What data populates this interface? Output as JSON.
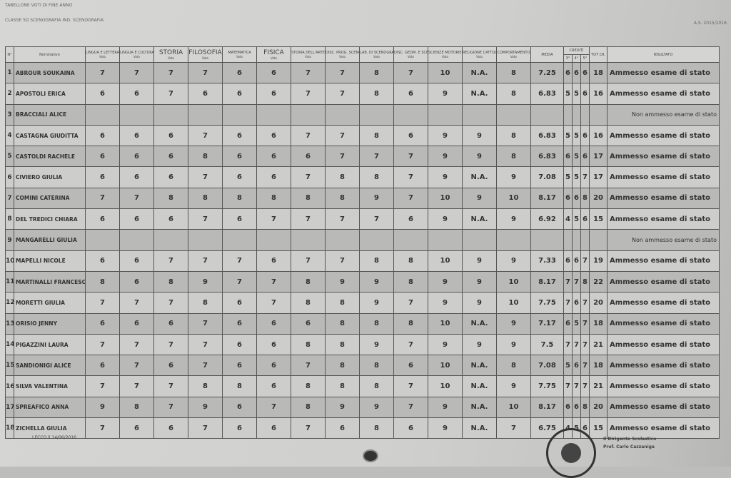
{
  "header": {
    "title": "TABELLONE VOTI DI FINE ANNO",
    "class": "CLASSE 5D SCENOGRAFIA IND. SCENOGRAFIA",
    "year": "A.S. 2015/2016"
  },
  "columns": {
    "n": "N°",
    "name": "Nominativo",
    "subjects": [
      "LINGUA E LETTERATURA ITALIANA",
      "LINGUA E CULTURA STRANIERA",
      "STORIA",
      "FILOSOFIA",
      "MATEMATICA",
      "FISICA",
      "STORIA DELL'ARTE",
      "DISC. PROG. SCENOGRAFICHE",
      "LAB. DI SCENOGRAFIA",
      "DISC. GEOM. E SCENOTECNICHE",
      "SCIENZE MOTORIE E SPORTIVE",
      "RELIGIONE CATTOLICA",
      "COMPORTAMENTO"
    ],
    "voto": "Voto",
    "media": "MEDIA",
    "crediti": "CREDITI",
    "crediti_years": [
      "3°",
      "4°",
      "5°"
    ],
    "tot": "TOT CR.",
    "risultato": "RISULTATO"
  },
  "rows": [
    {
      "n": "1",
      "name": "ABROUR SOUKAINA",
      "grades": [
        "7",
        "7",
        "7",
        "7",
        "6",
        "6",
        "7",
        "7",
        "8",
        "7",
        "10",
        "N.A.",
        "8"
      ],
      "media": "7.25",
      "crediti": [
        "6",
        "6",
        "6"
      ],
      "tot": "18",
      "result": "Ammesso esame di stato"
    },
    {
      "n": "2",
      "name": "APOSTOLI ERICA",
      "grades": [
        "6",
        "6",
        "7",
        "6",
        "6",
        "6",
        "7",
        "7",
        "8",
        "6",
        "9",
        "N.A.",
        "8"
      ],
      "media": "6.83",
      "crediti": [
        "5",
        "5",
        "6"
      ],
      "tot": "16",
      "result": "Ammesso esame di stato"
    },
    {
      "n": "3",
      "name": "BRACCIALI ALICE",
      "grades": [
        "",
        "",
        "",
        "",
        "",
        "",
        "",
        "",
        "",
        "",
        "",
        "",
        ""
      ],
      "media": "",
      "crediti": [
        "",
        "",
        ""
      ],
      "tot": "",
      "result": "Non ammesso esame di stato"
    },
    {
      "n": "4",
      "name": "CASTAGNA GIUDITTA",
      "grades": [
        "6",
        "6",
        "6",
        "7",
        "6",
        "6",
        "7",
        "7",
        "8",
        "6",
        "9",
        "9",
        "8"
      ],
      "media": "6.83",
      "crediti": [
        "5",
        "5",
        "6"
      ],
      "tot": "16",
      "result": "Ammesso esame di stato"
    },
    {
      "n": "5",
      "name": "CASTOLDI RACHELE",
      "grades": [
        "6",
        "6",
        "6",
        "8",
        "6",
        "6",
        "6",
        "7",
        "7",
        "7",
        "9",
        "9",
        "8"
      ],
      "media": "6.83",
      "crediti": [
        "6",
        "5",
        "6"
      ],
      "tot": "17",
      "result": "Ammesso esame di stato"
    },
    {
      "n": "6",
      "name": "CIVIERO GIULIA",
      "grades": [
        "6",
        "6",
        "6",
        "7",
        "6",
        "6",
        "7",
        "8",
        "8",
        "7",
        "9",
        "N.A.",
        "9"
      ],
      "media": "7.08",
      "crediti": [
        "5",
        "5",
        "7"
      ],
      "tot": "17",
      "result": "Ammesso esame di stato"
    },
    {
      "n": "7",
      "name": "COMINI CATERINA",
      "grades": [
        "7",
        "7",
        "8",
        "8",
        "8",
        "8",
        "8",
        "8",
        "9",
        "7",
        "10",
        "9",
        "10"
      ],
      "media": "8.17",
      "crediti": [
        "6",
        "6",
        "8"
      ],
      "tot": "20",
      "result": "Ammesso esame di stato"
    },
    {
      "n": "8",
      "name": "DEL TREDICI CHIARA",
      "grades": [
        "6",
        "6",
        "6",
        "7",
        "6",
        "7",
        "7",
        "7",
        "7",
        "6",
        "9",
        "N.A.",
        "9"
      ],
      "media": "6.92",
      "crediti": [
        "4",
        "5",
        "6"
      ],
      "tot": "15",
      "result": "Ammesso esame di stato"
    },
    {
      "n": "9",
      "name": "MANGARELLI GIULIA",
      "grades": [
        "",
        "",
        "",
        "",
        "",
        "",
        "",
        "",
        "",
        "",
        "",
        "",
        ""
      ],
      "media": "",
      "crediti": [
        "",
        "",
        ""
      ],
      "tot": "",
      "result": "Non ammesso esame di stato"
    },
    {
      "n": "10",
      "name": "MAPELLI NICOLE",
      "grades": [
        "6",
        "6",
        "7",
        "7",
        "7",
        "6",
        "7",
        "7",
        "8",
        "8",
        "10",
        "9",
        "9"
      ],
      "media": "7.33",
      "crediti": [
        "6",
        "6",
        "7"
      ],
      "tot": "19",
      "result": "Ammesso esame di stato"
    },
    {
      "n": "11",
      "name": "MARTINALLI FRANCESCA",
      "grades": [
        "8",
        "6",
        "8",
        "9",
        "7",
        "7",
        "8",
        "9",
        "9",
        "8",
        "9",
        "9",
        "10"
      ],
      "media": "8.17",
      "crediti": [
        "7",
        "7",
        "8"
      ],
      "tot": "22",
      "result": "Ammesso esame di stato"
    },
    {
      "n": "12",
      "name": "MORETTI GIULIA",
      "grades": [
        "7",
        "7",
        "7",
        "8",
        "6",
        "7",
        "8",
        "8",
        "9",
        "7",
        "9",
        "9",
        "10"
      ],
      "media": "7.75",
      "crediti": [
        "7",
        "6",
        "7"
      ],
      "tot": "20",
      "result": "Ammesso esame di stato"
    },
    {
      "n": "13",
      "name": "ORISIO JENNY",
      "grades": [
        "6",
        "6",
        "6",
        "7",
        "6",
        "6",
        "6",
        "8",
        "8",
        "8",
        "10",
        "N.A.",
        "9"
      ],
      "media": "7.17",
      "crediti": [
        "6",
        "5",
        "7"
      ],
      "tot": "18",
      "result": "Ammesso esame di stato"
    },
    {
      "n": "14",
      "name": "PIGAZZINI LAURA",
      "grades": [
        "7",
        "7",
        "7",
        "7",
        "6",
        "6",
        "8",
        "8",
        "9",
        "7",
        "9",
        "9",
        "9"
      ],
      "media": "7.5",
      "crediti": [
        "7",
        "7",
        "7"
      ],
      "tot": "21",
      "result": "Ammesso esame di stato"
    },
    {
      "n": "15",
      "name": "SANDIONIGI ALICE",
      "grades": [
        "6",
        "7",
        "6",
        "7",
        "6",
        "6",
        "7",
        "8",
        "8",
        "6",
        "10",
        "N.A.",
        "8"
      ],
      "media": "7.08",
      "crediti": [
        "5",
        "6",
        "7"
      ],
      "tot": "18",
      "result": "Ammesso esame di stato"
    },
    {
      "n": "16",
      "name": "SILVA VALENTINA",
      "grades": [
        "7",
        "7",
        "7",
        "8",
        "8",
        "6",
        "8",
        "8",
        "8",
        "7",
        "10",
        "N.A.",
        "9"
      ],
      "media": "7.75",
      "crediti": [
        "7",
        "7",
        "7"
      ],
      "tot": "21",
      "result": "Ammesso esame di stato"
    },
    {
      "n": "17",
      "name": "SPREAFICO ANNA",
      "grades": [
        "9",
        "8",
        "7",
        "9",
        "6",
        "7",
        "8",
        "9",
        "9",
        "7",
        "9",
        "N.A.",
        "10"
      ],
      "media": "8.17",
      "crediti": [
        "6",
        "6",
        "8"
      ],
      "tot": "20",
      "result": "Ammesso esame di stato"
    },
    {
      "n": "18",
      "name": "ZICHELLA GIULIA",
      "grades": [
        "7",
        "6",
        "6",
        "7",
        "6",
        "6",
        "7",
        "6",
        "8",
        "6",
        "9",
        "N.A.",
        "7"
      ],
      "media": "6.75",
      "crediti": [
        "4",
        "5",
        "6"
      ],
      "tot": "15",
      "result": "Ammesso esame di stato"
    }
  ],
  "footer": {
    "place_date": "LECCO li 14/06/2016",
    "signer_role": "Il Dirigente Scolastico",
    "signer_name": "Prof. Carlo Cazzaniga"
  }
}
